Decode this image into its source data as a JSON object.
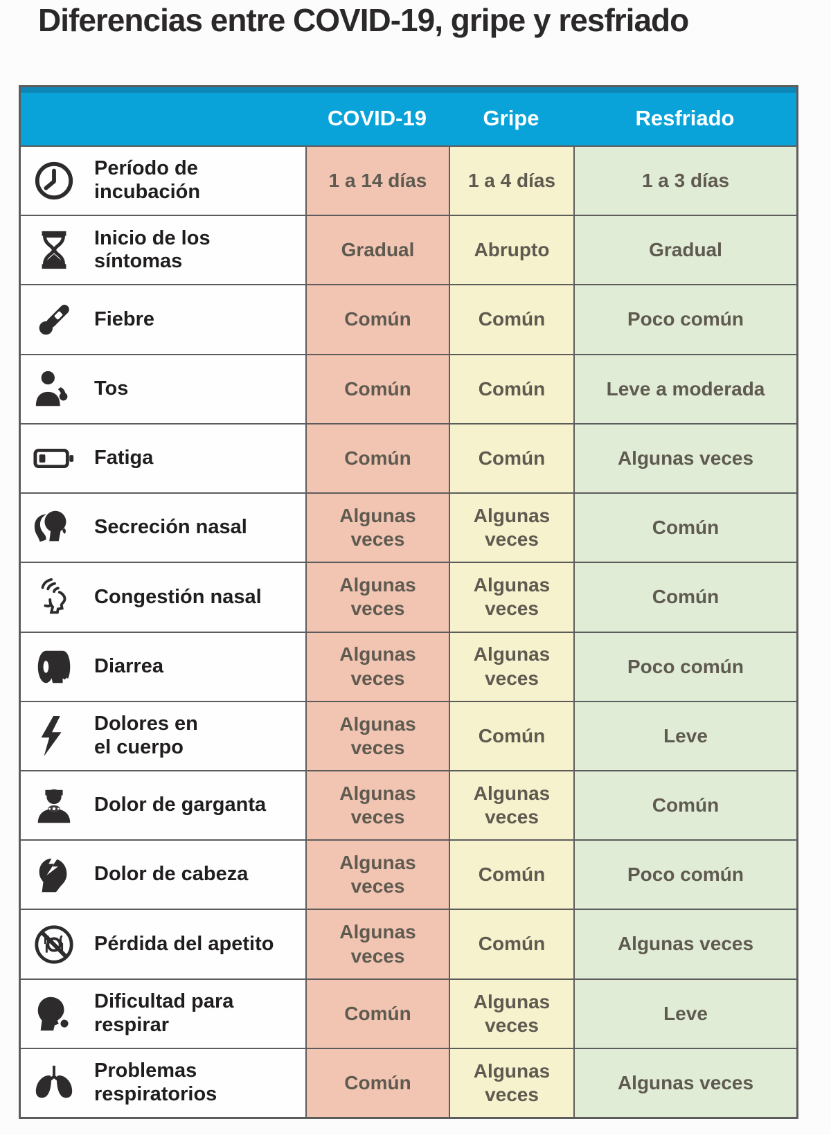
{
  "title": "Diferencias entre COVID-19, gripe y resfriado",
  "colors": {
    "header-bg": "#0aa3d9",
    "header-top-edge": "#0e87b7",
    "header-text": "#ffffff",
    "covid-col": "#f2c5b3",
    "gripe-col": "#f6f2cd",
    "resfriado-col": "#e0ecd6",
    "grid-line": "#5c5c5c",
    "label-text": "#201d1e",
    "value-text": "#5f5a50"
  },
  "table": {
    "columns": [
      "COVID-19",
      "Gripe",
      "Resfriado"
    ],
    "rows": [
      {
        "icon": "clock-icon",
        "label": "Período de\nincubación",
        "covid": "1 a 14 días",
        "gripe": "1 a 4 días",
        "resfriado": "1 a 3 días"
      },
      {
        "icon": "hourglass-icon",
        "label": "Inicio de los\nsíntomas",
        "covid": "Gradual",
        "gripe": "Abrupto",
        "resfriado": "Gradual"
      },
      {
        "icon": "thermometer-icon",
        "label": "Fiebre",
        "covid": "Común",
        "gripe": "Común",
        "resfriado": "Poco común"
      },
      {
        "icon": "coughing-person-icon",
        "label": "Tos",
        "covid": "Común",
        "gripe": "Común",
        "resfriado": "Leve a moderada"
      },
      {
        "icon": "low-battery-icon",
        "label": "Fatiga",
        "covid": "Común",
        "gripe": "Común",
        "resfriado": "Algunas veces"
      },
      {
        "icon": "runny-nose-icon",
        "label": "Secreción nasal",
        "covid": "Algunas\nveces",
        "gripe": "Algunas\nveces",
        "resfriado": "Común"
      },
      {
        "icon": "nasal-congestion-icon",
        "label": "Congestión nasal",
        "covid": "Algunas\nveces",
        "gripe": "Algunas\nveces",
        "resfriado": "Común"
      },
      {
        "icon": "toilet-paper-icon",
        "label": "Diarrea",
        "covid": "Algunas\nveces",
        "gripe": "Algunas\nveces",
        "resfriado": "Poco común"
      },
      {
        "icon": "lightning-bolt-icon",
        "label": "Dolores en\nel cuerpo",
        "covid": "Algunas\nveces",
        "gripe": "Común",
        "resfriado": "Leve"
      },
      {
        "icon": "sore-throat-icon",
        "label": "Dolor de garganta",
        "covid": "Algunas\nveces",
        "gripe": "Algunas\nveces",
        "resfriado": "Común"
      },
      {
        "icon": "headache-icon",
        "label": "Dolor de cabeza",
        "covid": "Algunas\nveces",
        "gripe": "Común",
        "resfriado": "Poco común"
      },
      {
        "icon": "no-appetite-icon",
        "label": "Pérdida del apetito",
        "covid": "Algunas\nveces",
        "gripe": "Común",
        "resfriado": "Algunas veces"
      },
      {
        "icon": "breathing-difficulty-icon",
        "label": "Dificultad para\nrespirar",
        "covid": "Común",
        "gripe": "Algunas\nveces",
        "resfriado": "Leve"
      },
      {
        "icon": "lungs-icon",
        "label": "Problemas\nrespiratorios",
        "covid": "Común",
        "gripe": "Algunas\nveces",
        "resfriado": "Algunas veces"
      }
    ]
  }
}
